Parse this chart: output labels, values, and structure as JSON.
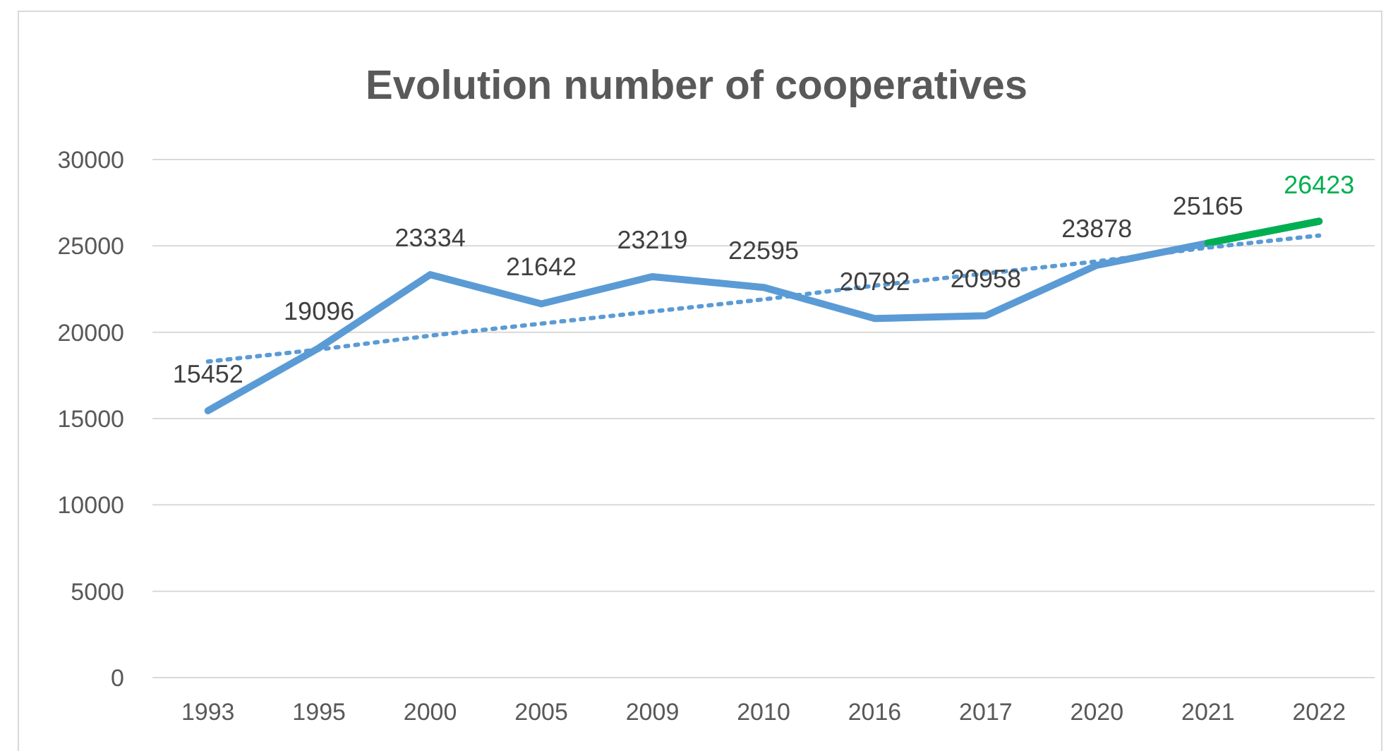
{
  "chart_data": {
    "type": "line",
    "title": "Evolution number of cooperatives",
    "categories": [
      "1993",
      "1995",
      "2000",
      "2005",
      "2009",
      "2010",
      "2016",
      "2017",
      "2020",
      "2021",
      "2022"
    ],
    "series": [
      {
        "color": "#5b9bd5",
        "values": [
          15452,
          19096,
          23334,
          21642,
          23219,
          22595,
          20792,
          20958,
          23878,
          25165,
          26423
        ],
        "value_labels": [
          "15452",
          "19096",
          "23334",
          "21642",
          "23219",
          "22595",
          "20792",
          "20958",
          "23878",
          "25165",
          null
        ]
      },
      {
        "color": "#00b050",
        "values": [
          null,
          null,
          null,
          null,
          null,
          null,
          null,
          null,
          null,
          25165,
          26423
        ],
        "value_labels": [
          null,
          null,
          null,
          null,
          null,
          null,
          null,
          null,
          null,
          null,
          "26423"
        ]
      },
      {
        "color": "#5b9bd5",
        "line_style": "dotted",
        "values": [
          18300,
          19000,
          19800,
          20500,
          21200,
          21900,
          22700,
          23400,
          24100,
          24900,
          25600
        ]
      }
    ],
    "ylim": [
      0,
      30000
    ],
    "yticks": [
      0,
      5000,
      10000,
      15000,
      20000,
      25000,
      30000
    ],
    "grid": "y",
    "line_style": "solid",
    "marker": "none"
  }
}
